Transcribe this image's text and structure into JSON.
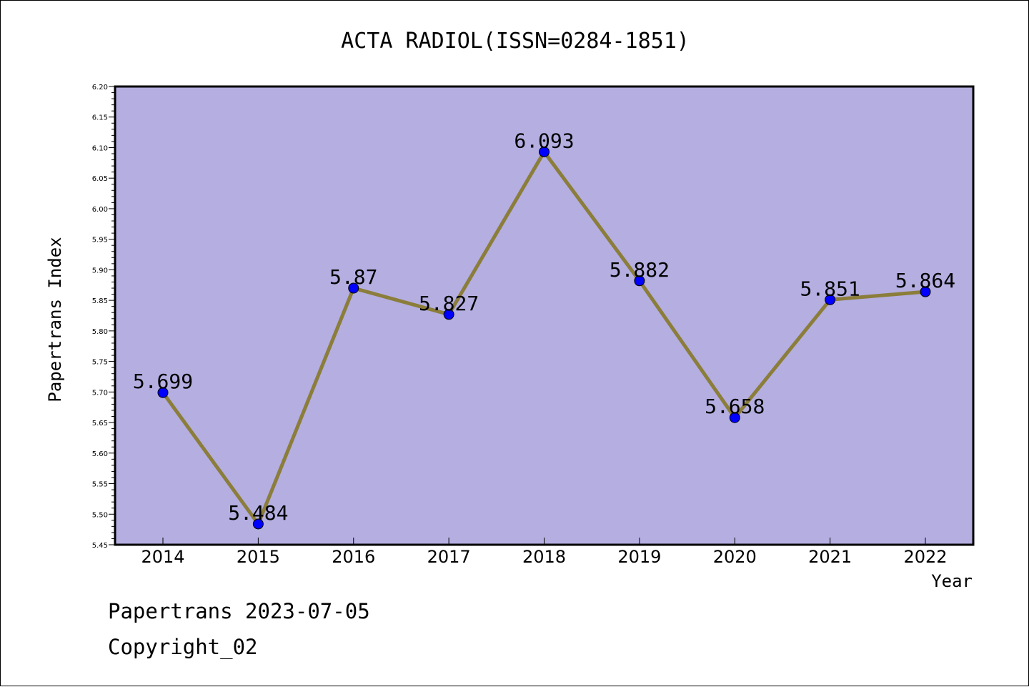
{
  "chart_data": {
    "type": "line",
    "title": "ACTA RADIOL(ISSN=0284-1851)",
    "xlabel": "Year",
    "ylabel": "Papertrans Index",
    "categories": [
      "2014",
      "2015",
      "2016",
      "2017",
      "2018",
      "2019",
      "2020",
      "2021",
      "2022"
    ],
    "series": [
      {
        "values": [
          5.699,
          5.484,
          5.87,
          5.827,
          6.093,
          5.882,
          5.658,
          5.851,
          5.864
        ],
        "labels": [
          "5.699",
          "5.484",
          "5.87",
          "5.827",
          "6.093",
          "5.882",
          "5.658",
          "5.851",
          "5.864"
        ]
      }
    ],
    "ylim": [
      5.45,
      6.2
    ],
    "yticks": [
      "5.45",
      "5.50",
      "5.55",
      "5.60",
      "5.65",
      "5.70",
      "5.75",
      "5.80",
      "5.85",
      "5.90",
      "5.95",
      "6.00",
      "6.05",
      "6.10",
      "6.15",
      "6.20"
    ],
    "grid": false,
    "legend": "none",
    "colors": {
      "plot_background": "#b4aee1",
      "line": "#8b7d3a",
      "marker": "#0000ff"
    }
  },
  "footer": {
    "line1": "Papertrans 2023-07-05",
    "line2": "Copyright_02"
  }
}
